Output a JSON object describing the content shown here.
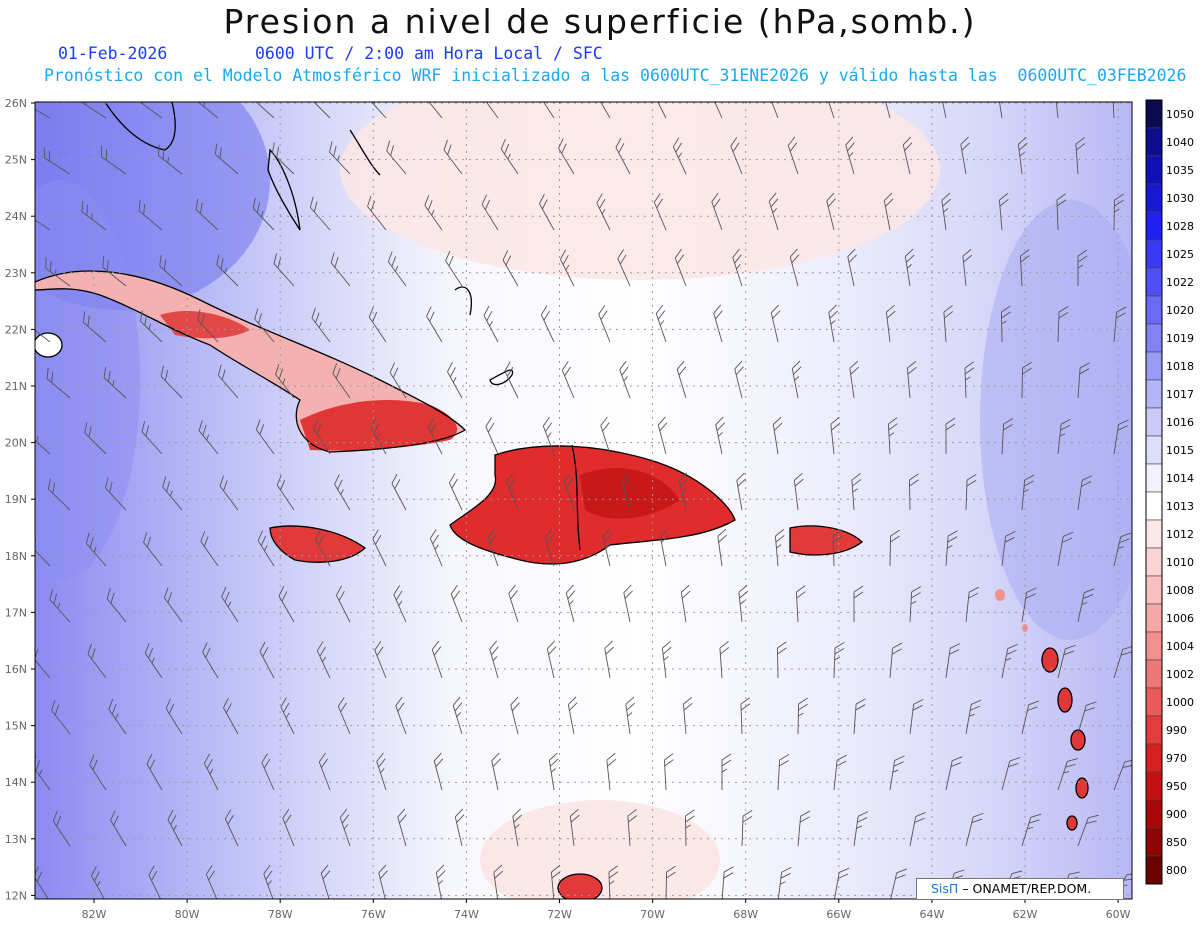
{
  "header": {
    "title": "Presion a nivel de superficie (hPa,somb.)",
    "date": "01-Feb-2026",
    "time": "0600 UTC / 2:00 am Hora Local / SFC",
    "forecast_note": "Pronóstico con el Modelo Atmosférico WRF inicializado a las 0600UTC_31ENE2026 y válido hasta las  0600UTC_03FEB2026"
  },
  "map": {
    "lat_labels": [
      "26N",
      "25N",
      "24N",
      "23N",
      "22N",
      "21N",
      "20N",
      "19N",
      "18N",
      "17N",
      "16N",
      "15N",
      "14N",
      "13N",
      "12N"
    ],
    "lon_labels": [
      "82W",
      "80W",
      "78W",
      "76W",
      "74W",
      "72W",
      "70W",
      "68W",
      "66W",
      "64W",
      "62W",
      "60W"
    ],
    "colorbar_labels": [
      "1050",
      "1040",
      "1035",
      "1030",
      "1028",
      "1025",
      "1022",
      "1020",
      "1019",
      "1018",
      "1017",
      "1016",
      "1015",
      "1014",
      "1013",
      "1012",
      "1010",
      "1008",
      "1006",
      "1004",
      "1002",
      "1000",
      "990",
      "970",
      "950",
      "900",
      "850",
      "800"
    ],
    "colorbar_colors": [
      "#0a0a50",
      "#0c0c8c",
      "#1010b4",
      "#1818d4",
      "#2020f0",
      "#3a3af4",
      "#5050f4",
      "#6a6af4",
      "#8282f4",
      "#9a9af4",
      "#b4b4f6",
      "#cacaf8",
      "#dedefa",
      "#f2f2fc",
      "#ffffff",
      "#fde8e8",
      "#fbd4d4",
      "#f8c0c0",
      "#f6a8a8",
      "#f29090",
      "#ee7878",
      "#ea5a5a",
      "#e43c3c",
      "#d82020",
      "#c41010",
      "#a80808",
      "#8c0404",
      "#6a0202"
    ]
  },
  "credit": {
    "logo": "SisΠ",
    "org": "– ONAMET/REP.DOM."
  }
}
